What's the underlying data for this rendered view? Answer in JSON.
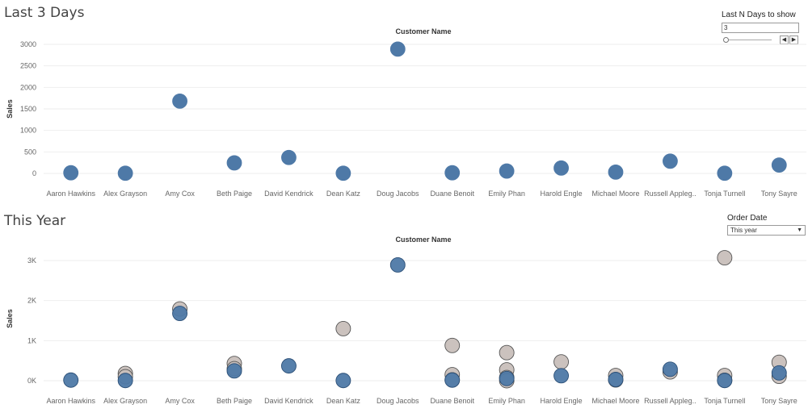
{
  "sheets": {
    "top": {
      "title": "Last 3 Days"
    },
    "bottom": {
      "title": "This Year"
    }
  },
  "filters": {
    "last_n": {
      "label": "Last N Days to show",
      "value": "3"
    },
    "order_date": {
      "label": "Order Date",
      "value": "This year"
    }
  },
  "colors": {
    "blue": "#4e79a7",
    "blue_edge": "#2b4f77",
    "grey": "#c8bfbb",
    "grey_edge": "#555555",
    "grid": "#eeeeee"
  },
  "chart_data": [
    {
      "type": "scatter",
      "title": "Last 3 Days",
      "header": "Customer Name",
      "xlabel": "",
      "ylabel": "Sales",
      "ylim": [
        -100,
        3200
      ],
      "yticks": [
        0,
        500,
        1000,
        1500,
        2000,
        2500,
        3000
      ],
      "ytick_labels": [
        "0",
        "500",
        "1000",
        "1500",
        "2000",
        "2500",
        "3000"
      ],
      "grid": true,
      "categories": [
        "Aaron Hawkins",
        "Alex Grayson",
        "Amy Cox",
        "Beth Paige",
        "David Kendrick",
        "Dean Katz",
        "Doug Jacobs",
        "Duane Benoit",
        "Emily Phan",
        "Harold Engle",
        "Michael Moore",
        "Russell Appleg..",
        "Tonja Turnell",
        "Tony Sayre"
      ],
      "series": [
        {
          "color": "blue",
          "points": [
            {
              "x": "Aaron Hawkins",
              "y": 15
            },
            {
              "x": "Alex Grayson",
              "y": 5
            },
            {
              "x": "Amy Cox",
              "y": 1680
            },
            {
              "x": "Beth Paige",
              "y": 245
            },
            {
              "x": "David Kendrick",
              "y": 370
            },
            {
              "x": "Dean Katz",
              "y": 5
            },
            {
              "x": "Doug Jacobs",
              "y": 2890
            },
            {
              "x": "Duane Benoit",
              "y": 15
            },
            {
              "x": "Emily Phan",
              "y": 55
            },
            {
              "x": "Harold Engle",
              "y": 125
            },
            {
              "x": "Michael Moore",
              "y": 30
            },
            {
              "x": "Russell Appleg..",
              "y": 285
            },
            {
              "x": "Tonja Turnell",
              "y": 5
            },
            {
              "x": "Tony Sayre",
              "y": 195
            }
          ]
        }
      ]
    },
    {
      "type": "scatter",
      "title": "This Year",
      "header": "Customer Name",
      "xlabel": "",
      "ylabel": "Sales",
      "ylim": [
        -150,
        3450
      ],
      "yticks": [
        0,
        1000,
        2000,
        3000
      ],
      "ytick_labels": [
        "0K",
        "1K",
        "2K",
        "3K"
      ],
      "grid": true,
      "categories": [
        "Aaron Hawkins",
        "Alex Grayson",
        "Amy Cox",
        "Beth Paige",
        "David Kendrick",
        "Dean Katz",
        "Doug Jacobs",
        "Duane Benoit",
        "Emily Phan",
        "Harold Engle",
        "Michael Moore",
        "Russell Appleg..",
        "Tonja Turnell",
        "Tony Sayre"
      ],
      "series": [
        {
          "color": "grey",
          "points": [
            {
              "x": "Alex Grayson",
              "y": 180
            },
            {
              "x": "Alex Grayson",
              "y": 100
            },
            {
              "x": "Amy Cox",
              "y": 1790
            },
            {
              "x": "Beth Paige",
              "y": 430
            },
            {
              "x": "Beth Paige",
              "y": 300
            },
            {
              "x": "Dean Katz",
              "y": 1300
            },
            {
              "x": "Duane Benoit",
              "y": 880
            },
            {
              "x": "Duane Benoit",
              "y": 150
            },
            {
              "x": "Duane Benoit",
              "y": 20
            },
            {
              "x": "Emily Phan",
              "y": 700
            },
            {
              "x": "Emily Phan",
              "y": 270
            },
            {
              "x": "Emily Phan",
              "y": 80
            },
            {
              "x": "Emily Phan",
              "y": 0
            },
            {
              "x": "Harold Engle",
              "y": 470
            },
            {
              "x": "Michael Moore",
              "y": 130
            },
            {
              "x": "Michael Moore",
              "y": 20
            },
            {
              "x": "Russell Appleg..",
              "y": 220
            },
            {
              "x": "Tonja Turnell",
              "y": 3070
            },
            {
              "x": "Tonja Turnell",
              "y": 130
            },
            {
              "x": "Tonja Turnell",
              "y": 10
            },
            {
              "x": "Tony Sayre",
              "y": 460
            },
            {
              "x": "Tony Sayre",
              "y": 110
            }
          ]
        },
        {
          "color": "blue",
          "points": [
            {
              "x": "Aaron Hawkins",
              "y": 15
            },
            {
              "x": "Alex Grayson",
              "y": 5
            },
            {
              "x": "Amy Cox",
              "y": 1680
            },
            {
              "x": "Beth Paige",
              "y": 245
            },
            {
              "x": "David Kendrick",
              "y": 370
            },
            {
              "x": "Dean Katz",
              "y": 5
            },
            {
              "x": "Doug Jacobs",
              "y": 2890
            },
            {
              "x": "Duane Benoit",
              "y": 15
            },
            {
              "x": "Emily Phan",
              "y": 55
            },
            {
              "x": "Harold Engle",
              "y": 125
            },
            {
              "x": "Michael Moore",
              "y": 30
            },
            {
              "x": "Russell Appleg..",
              "y": 285
            },
            {
              "x": "Tonja Turnell",
              "y": 5
            },
            {
              "x": "Tony Sayre",
              "y": 195
            }
          ]
        }
      ]
    }
  ]
}
